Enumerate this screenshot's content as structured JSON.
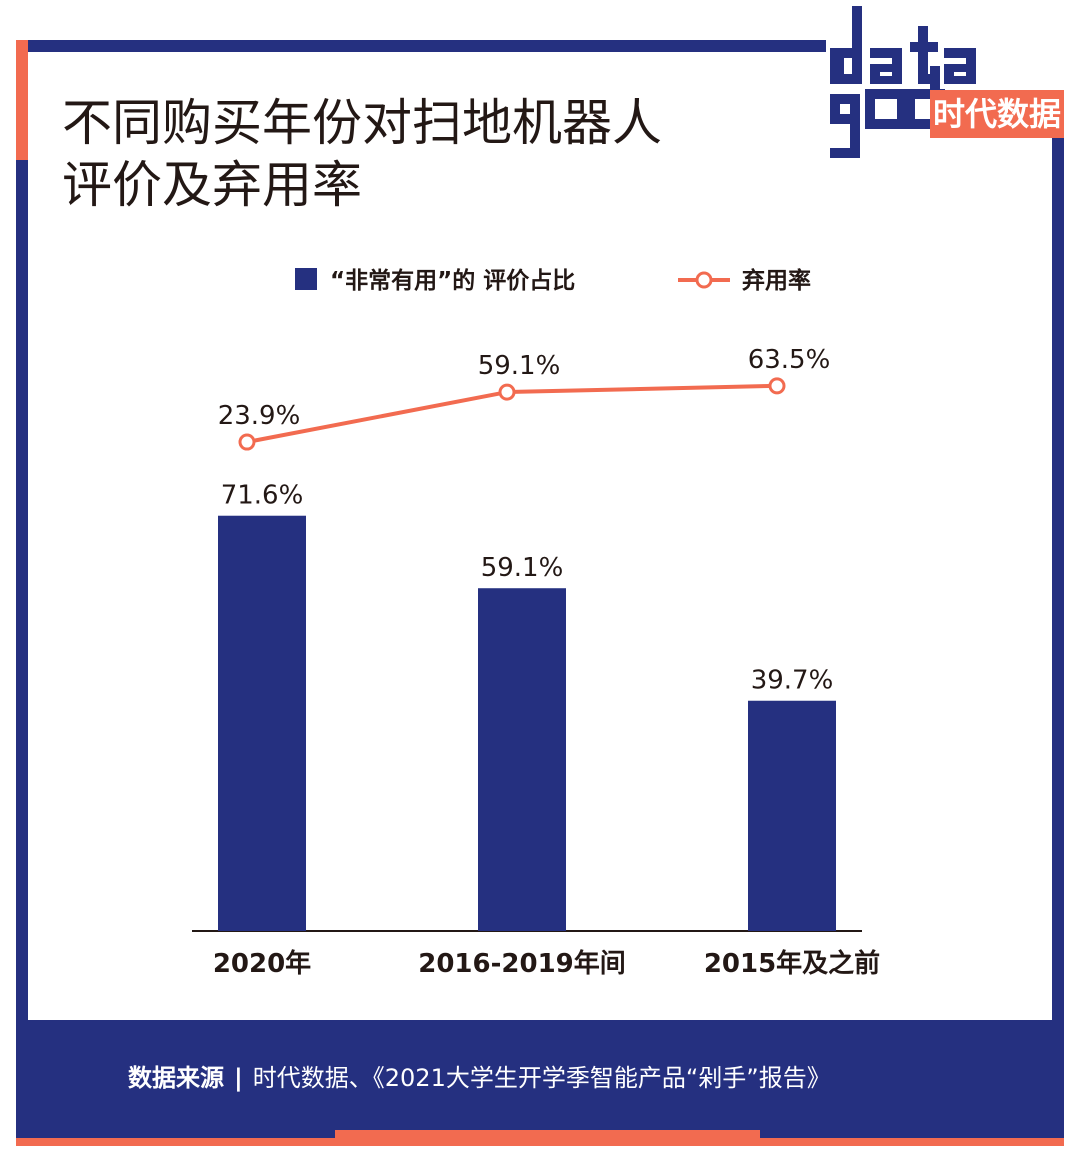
{
  "header": {
    "title_line1": "不同购买年份对扫地机器人",
    "title_line2": "评价及弃用率"
  },
  "logo": {
    "text": "时代数据",
    "mark": "data god"
  },
  "footer": {
    "source_label": "数据来源",
    "source_separator": "|",
    "source_text": "时代数据、《2021大学生开学季智能产品“剁手”报告》"
  },
  "colors": {
    "navy": "#253080",
    "accent": "#f26b50",
    "text": "#231815"
  },
  "chart_data": {
    "type": "bar",
    "categories": [
      "2020年",
      "2016-2019年间",
      "2015年及之前"
    ],
    "series": [
      {
        "name": "“非常有用”的 评价占比",
        "type": "bar",
        "values": [
          71.6,
          59.1,
          39.7
        ],
        "labels": [
          "71.6%",
          "59.1%",
          "39.7%"
        ],
        "color": "#253080"
      },
      {
        "name": "弃用率",
        "type": "line",
        "values": [
          23.9,
          59.1,
          63.5
        ],
        "labels": [
          "23.9%",
          "59.1%",
          "63.5%"
        ],
        "color": "#f26b50"
      }
    ],
    "legend_position": "top-center",
    "grid": false
  }
}
